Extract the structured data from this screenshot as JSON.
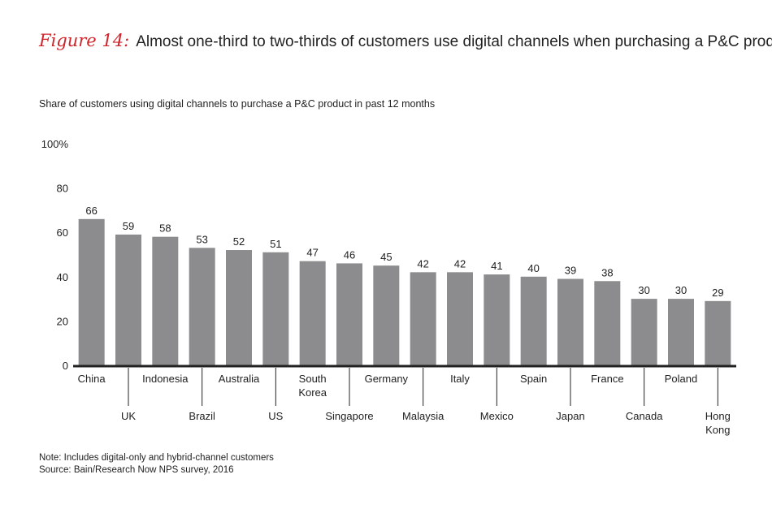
{
  "figure": {
    "label": "Figure 14:",
    "title": "Almost one-third to two-thirds of customers use digital channels when purchasing a P&C product"
  },
  "notes": {
    "note": "Note: Includes digital-only and hybrid-channel customers",
    "source": "Source: Bain/Research Now NPS survey, 2016"
  },
  "chart_data": {
    "type": "bar",
    "title": "",
    "subtitle": "Share of customers using digital channels to purchase a P&C product in past 12 months",
    "xlabel": "",
    "ylabel": "",
    "ylim": [
      0,
      100
    ],
    "yticks": [
      {
        "value": 0,
        "label": "0"
      },
      {
        "value": 20,
        "label": "20"
      },
      {
        "value": 40,
        "label": "40"
      },
      {
        "value": 60,
        "label": "60"
      },
      {
        "value": 80,
        "label": "80"
      },
      {
        "value": 100,
        "label": "100%"
      }
    ],
    "grid": false,
    "legend": "none",
    "bar_color": "#8c8c8e",
    "axis_color": "#222222",
    "categories": [
      "China",
      "UK",
      "Indonesia",
      "Brazil",
      "Australia",
      "US",
      "South Korea",
      "Singapore",
      "Germany",
      "Malaysia",
      "Italy",
      "Mexico",
      "Spain",
      "Japan",
      "France",
      "Canada",
      "Poland",
      "Hong Kong"
    ],
    "category_lines": [
      [
        "China"
      ],
      [
        "UK"
      ],
      [
        "Indonesia"
      ],
      [
        "Brazil"
      ],
      [
        "Australia"
      ],
      [
        "US"
      ],
      [
        "South",
        "Korea"
      ],
      [
        "Singapore"
      ],
      [
        "Germany"
      ],
      [
        "Malaysia"
      ],
      [
        "Italy"
      ],
      [
        "Mexico"
      ],
      [
        "Spain"
      ],
      [
        "Japan"
      ],
      [
        "France"
      ],
      [
        "Canada"
      ],
      [
        "Poland"
      ],
      [
        "Hong",
        "Kong"
      ]
    ],
    "values": [
      66,
      59,
      58,
      53,
      52,
      51,
      47,
      46,
      45,
      42,
      42,
      41,
      40,
      39,
      38,
      30,
      30,
      29
    ]
  }
}
